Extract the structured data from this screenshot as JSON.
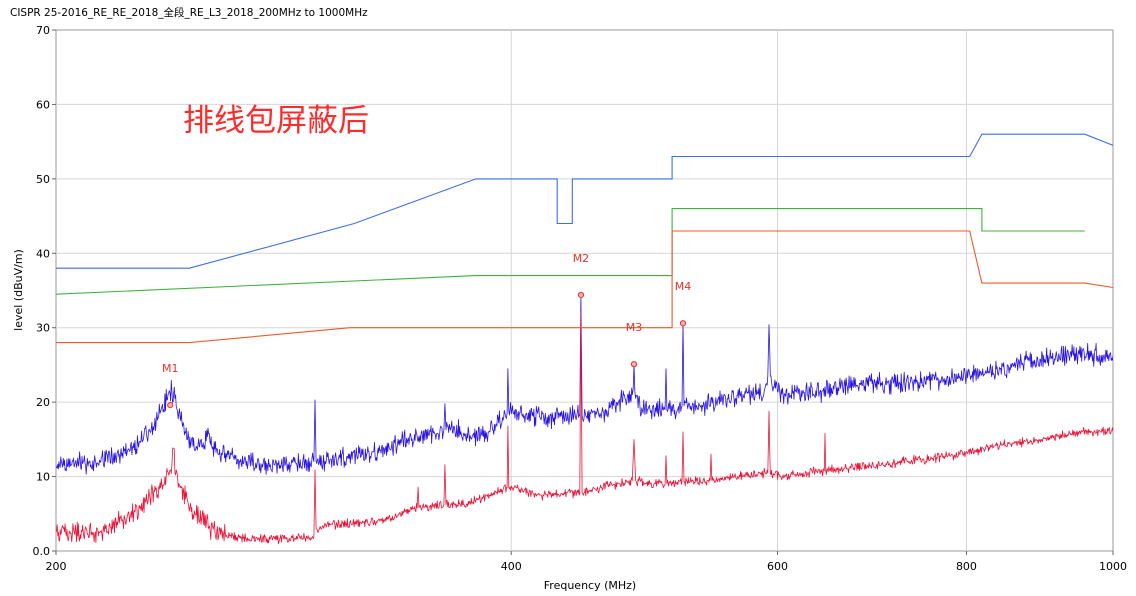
{
  "chart_data": {
    "type": "line",
    "title": "CISPR 25-2016_RE_RE_2018_全段_RE_L3_2018_200MHz to 1000MHz",
    "xlabel": "Frequency (MHz)",
    "ylabel": "level (dBuV/m)",
    "x_scale": "log",
    "xlim": [
      200,
      1000
    ],
    "ylim": [
      0,
      70
    ],
    "xticks": [
      200,
      400,
      600,
      800,
      1000
    ],
    "xtick_labels": [
      "200",
      "400",
      "600",
      "800",
      "1000"
    ],
    "yticks": [
      0,
      10,
      20,
      30,
      40,
      50,
      60,
      70
    ],
    "ytick_labels": [
      "0.0",
      "10",
      "20",
      "30",
      "40",
      "50",
      "60",
      "70"
    ],
    "grid": true,
    "annotation": {
      "text": "排线包屏蔽后",
      "color": "#ff2b2b"
    },
    "limit_lines": [
      {
        "color": "#3d6fe6",
        "points": [
          [
            200,
            38
          ],
          [
            245,
            38
          ],
          [
            315,
            44
          ],
          [
            379,
            50
          ],
          [
            429,
            50
          ],
          [
            429,
            44
          ],
          [
            439,
            44
          ],
          [
            439,
            50
          ],
          [
            511,
            50
          ],
          [
            511,
            53
          ],
          [
            804,
            53
          ],
          [
            819,
            56
          ],
          [
            958,
            56
          ],
          [
            1000,
            54.5
          ]
        ]
      },
      {
        "color": "#3cb43c",
        "points": [
          [
            200,
            34.5
          ],
          [
            379,
            37
          ],
          [
            511,
            37
          ],
          [
            511,
            46
          ],
          [
            819,
            46
          ],
          [
            819,
            43
          ],
          [
            958,
            43
          ]
        ]
      },
      {
        "color": "#f0582a",
        "points": [
          [
            200,
            28
          ],
          [
            245,
            28
          ],
          [
            313,
            30
          ],
          [
            511,
            30
          ],
          [
            511,
            43
          ],
          [
            804,
            43
          ],
          [
            819,
            36
          ],
          [
            958,
            36
          ],
          [
            1000,
            35.4
          ]
        ]
      }
    ],
    "series": [
      {
        "color": "#2a14e0",
        "points": [
          [
            200,
            11.5
          ],
          [
            213.9,
            12
          ],
          [
            223.9,
            13.5
          ],
          [
            230.8,
            16
          ],
          [
            234.3,
            18.5
          ],
          [
            237.2,
            21
          ],
          [
            238.6,
            21.5
          ],
          [
            239.7,
            20.5
          ],
          [
            241.6,
            18
          ],
          [
            243.4,
            16
          ],
          [
            247.1,
            13.5
          ],
          [
            250,
            14
          ],
          [
            252.1,
            16.5
          ],
          [
            254,
            14
          ],
          [
            255.9,
            13
          ],
          [
            264.7,
            12
          ],
          [
            281.3,
            11.5
          ],
          [
            294.4,
            12
          ],
          [
            296.2,
            12
          ],
          [
            296.7,
            20.3
          ],
          [
            297.2,
            12
          ],
          [
            303.5,
            12.3
          ],
          [
            308.2,
            12.5
          ],
          [
            327.5,
            13.5
          ],
          [
            348.1,
            15.5
          ],
          [
            361,
            16.3
          ],
          [
            361.6,
            19.8
          ],
          [
            362.2,
            16.3
          ],
          [
            364.4,
            16.5
          ],
          [
            375.7,
            15.5
          ],
          [
            387.3,
            16
          ],
          [
            396.2,
            18.5
          ],
          [
            397.5,
            18.5
          ],
          [
            398,
            24.5
          ],
          [
            398.5,
            18.8
          ],
          [
            405.4,
            18.5
          ],
          [
            417.9,
            18
          ],
          [
            430.8,
            18
          ],
          [
            444,
            18.2
          ],
          [
            444.8,
            34.4
          ],
          [
            445.6,
            18.2
          ],
          [
            457.9,
            18.5
          ],
          [
            481,
            21
          ],
          [
            482.2,
            25.1
          ],
          [
            483.4,
            20.5
          ],
          [
            486.6,
            19.5
          ],
          [
            494.1,
            19
          ],
          [
            505.6,
            19
          ],
          [
            506.3,
            24.5
          ],
          [
            507,
            19
          ],
          [
            518.8,
            19.5
          ],
          [
            519.6,
            30.6
          ],
          [
            520.4,
            19.5
          ],
          [
            533.2,
            19.5
          ],
          [
            566.7,
            21
          ],
          [
            588,
            21.5
          ],
          [
            591.2,
            23.5
          ],
          [
            592.3,
            30.4
          ],
          [
            593.4,
            23.5
          ],
          [
            597,
            22
          ],
          [
            602.3,
            21
          ],
          [
            640.1,
            21.5
          ],
          [
            680.3,
            22.5
          ],
          [
            723,
            22.5
          ],
          [
            768.4,
            23
          ],
          [
            804.4,
            23.5
          ],
          [
            842,
            24.5
          ],
          [
            894.8,
            25.8
          ],
          [
            943.9,
            26.5
          ],
          [
            1000,
            26.3
          ]
        ]
      },
      {
        "color": "#eb1438",
        "points": [
          [
            200,
            2.5
          ],
          [
            213.9,
            2.5
          ],
          [
            223.9,
            4.5
          ],
          [
            230.8,
            7
          ],
          [
            236.1,
            10
          ],
          [
            238.6,
            11.5
          ],
          [
            239.2,
            13.8
          ],
          [
            239.7,
            10.5
          ],
          [
            241.6,
            8.5
          ],
          [
            247.1,
            5
          ],
          [
            254.8,
            2.5
          ],
          [
            268.7,
            1.5
          ],
          [
            294.4,
            1.8
          ],
          [
            296.2,
            2
          ],
          [
            296.7,
            10.9
          ],
          [
            297.2,
            3
          ],
          [
            303.5,
            3.5
          ],
          [
            327.5,
            4
          ],
          [
            346.6,
            5.8
          ],
          [
            347.1,
            8.6
          ],
          [
            347.6,
            5.8
          ],
          [
            361,
            6.2
          ],
          [
            361.6,
            11.6
          ],
          [
            362.2,
            6.2
          ],
          [
            375.7,
            6.5
          ],
          [
            387.3,
            7.5
          ],
          [
            397.5,
            8.5
          ],
          [
            398,
            16.8
          ],
          [
            398.5,
            8.5
          ],
          [
            405.4,
            8.3
          ],
          [
            417.9,
            7.5
          ],
          [
            444,
            7.8
          ],
          [
            444.8,
            32
          ],
          [
            445.6,
            7.8
          ],
          [
            457.9,
            8.5
          ],
          [
            481,
            9.5
          ],
          [
            482.2,
            15
          ],
          [
            483.4,
            9.5
          ],
          [
            494.1,
            9
          ],
          [
            505.6,
            9
          ],
          [
            506.3,
            12.8
          ],
          [
            507,
            9
          ],
          [
            518.8,
            9.3
          ],
          [
            519.6,
            16
          ],
          [
            520.4,
            9.3
          ],
          [
            541.5,
            9.5
          ],
          [
            542.2,
            13
          ],
          [
            542.9,
            9.5
          ],
          [
            566.7,
            10
          ],
          [
            591.2,
            10.5
          ],
          [
            592.3,
            18.8
          ],
          [
            593.4,
            10.5
          ],
          [
            602.3,
            10
          ],
          [
            644.3,
            10.8
          ],
          [
            645,
            15.8
          ],
          [
            645.7,
            10.8
          ],
          [
            659.9,
            11
          ],
          [
            701.3,
            11.5
          ],
          [
            745.4,
            12.3
          ],
          [
            792.2,
            13
          ],
          [
            842,
            14.2
          ],
          [
            894.8,
            15
          ],
          [
            951.1,
            16
          ],
          [
            1000,
            16
          ]
        ]
      }
    ],
    "markers": [
      {
        "label": "M1",
        "x": 238.0,
        "y": 19.6
      },
      {
        "label": "M2",
        "x": 444.8,
        "y": 34.4
      },
      {
        "label": "M3",
        "x": 482.2,
        "y": 25.1
      },
      {
        "label": "M4",
        "x": 519.6,
        "y": 30.6
      }
    ],
    "marker_color": "#e8302a"
  }
}
